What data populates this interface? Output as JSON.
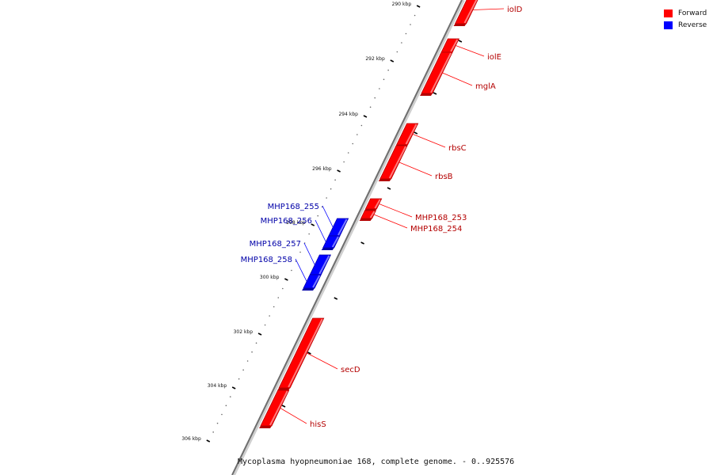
{
  "legend": {
    "forward": {
      "label": "Forward",
      "color": "#ff0000"
    },
    "reverse": {
      "label": "Reverse",
      "color": "#0000ff"
    }
  },
  "caption": "Mycoplasma hyopneumoniae 168, complete genome. - 0..925576",
  "ticks": {
    "unit": "kbp",
    "labels": [
      "290 kbp",
      "292 kbp",
      "294 kbp",
      "296 kbp",
      "298 kbp",
      "300 kbp",
      "302 kbp",
      "304 kbp",
      "306 kbp"
    ]
  },
  "genes": [
    {
      "name": "iolD",
      "strand": "forward"
    },
    {
      "name": "iolE",
      "strand": "forward"
    },
    {
      "name": "mglA",
      "strand": "forward"
    },
    {
      "name": "rbsC",
      "strand": "forward"
    },
    {
      "name": "rbsB",
      "strand": "forward"
    },
    {
      "name": "MHP168_253",
      "strand": "forward"
    },
    {
      "name": "MHP168_254",
      "strand": "forward"
    },
    {
      "name": "MHP168_255",
      "strand": "reverse"
    },
    {
      "name": "MHP168_256",
      "strand": "reverse"
    },
    {
      "name": "MHP168_257",
      "strand": "reverse"
    },
    {
      "name": "MHP168_258",
      "strand": "reverse"
    },
    {
      "name": "secD",
      "strand": "forward"
    },
    {
      "name": "hisS",
      "strand": "forward"
    }
  ]
}
